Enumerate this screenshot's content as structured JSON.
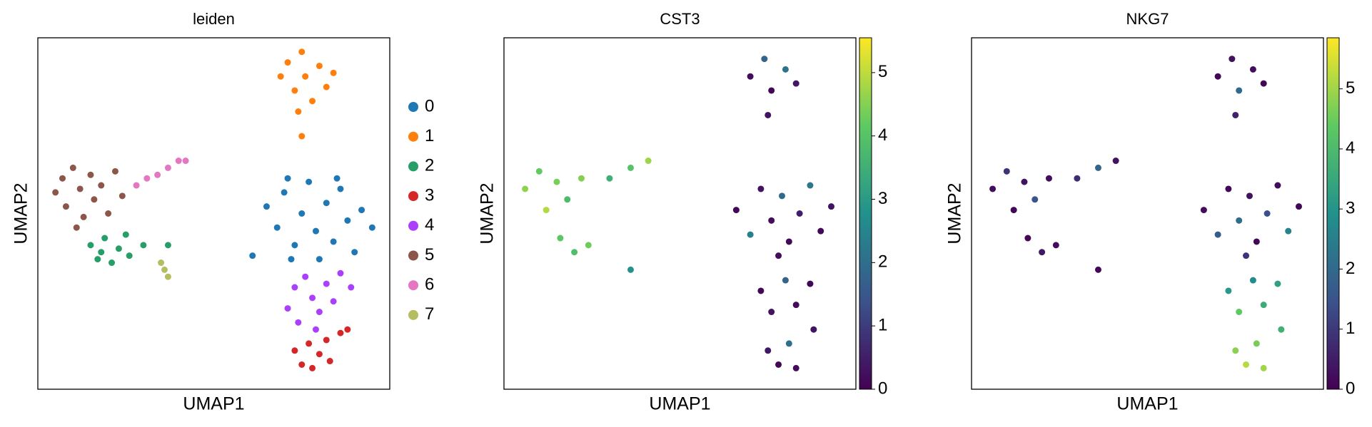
{
  "chart_data": [
    {
      "type": "scatter",
      "title": "leiden",
      "xlabel": "UMAP1",
      "ylabel": "UMAP2",
      "xlim": [
        0,
        10
      ],
      "ylim": [
        0,
        10
      ],
      "legend": "right",
      "series": [
        {
          "name": "0",
          "color": "#1f77b4",
          "x": [
            6.5,
            6.8,
            7.0,
            7.3,
            7.5,
            7.7,
            7.9,
            8.0,
            8.2,
            8.4,
            8.6,
            8.8,
            9.0,
            9.2,
            9.5,
            7.2,
            8.5,
            7.1,
            6.1
          ],
          "y": [
            5.2,
            4.6,
            5.6,
            4.1,
            5.0,
            5.9,
            4.5,
            3.7,
            5.3,
            4.2,
            5.7,
            4.8,
            3.9,
            5.1,
            4.6,
            3.7,
            6.0,
            6.0,
            3.8
          ]
        },
        {
          "name": "1",
          "color": "#ff7f0e",
          "x": [
            6.9,
            7.1,
            7.3,
            7.5,
            7.6,
            7.8,
            8.0,
            8.2,
            8.4,
            7.4,
            7.5
          ],
          "y": [
            8.9,
            9.3,
            8.5,
            9.6,
            8.9,
            8.2,
            9.2,
            8.6,
            9.0,
            7.9,
            7.2
          ]
        },
        {
          "name": "2",
          "color": "#279e68",
          "x": [
            1.5,
            1.7,
            1.9,
            2.1,
            2.3,
            2.5,
            2.6,
            1.8,
            3.0,
            3.7
          ],
          "y": [
            4.1,
            3.7,
            4.3,
            3.6,
            4.0,
            4.4,
            3.8,
            3.9,
            4.1,
            4.1
          ]
        },
        {
          "name": "3",
          "color": "#d62728",
          "x": [
            7.3,
            7.5,
            7.7,
            7.8,
            8.0,
            8.2,
            8.3,
            8.8,
            8.6
          ],
          "y": [
            1.1,
            0.7,
            1.3,
            0.6,
            1.0,
            1.4,
            0.8,
            1.7,
            1.6
          ]
        },
        {
          "name": "4",
          "color": "#aa40fc",
          "x": [
            7.1,
            7.3,
            7.4,
            7.6,
            7.8,
            8.0,
            8.2,
            8.4,
            8.6,
            8.9,
            7.9
          ],
          "y": [
            2.3,
            2.9,
            1.9,
            3.2,
            2.6,
            2.2,
            3.0,
            2.5,
            3.3,
            2.9,
            1.7
          ]
        },
        {
          "name": "5",
          "color": "#8c564b",
          "x": [
            0.5,
            0.7,
            0.8,
            1.0,
            1.2,
            1.3,
            1.5,
            1.6,
            1.8,
            2.0,
            2.2,
            2.4,
            1.1
          ],
          "y": [
            5.6,
            6.0,
            5.2,
            6.3,
            5.7,
            4.9,
            6.1,
            5.4,
            5.8,
            5.0,
            6.2,
            5.5,
            4.6
          ]
        },
        {
          "name": "6",
          "color": "#e377c2",
          "x": [
            2.8,
            3.1,
            3.4,
            3.7,
            4.0,
            4.2
          ],
          "y": [
            5.8,
            6.0,
            6.1,
            6.3,
            6.5,
            6.5
          ]
        },
        {
          "name": "7",
          "color": "#b5bd61",
          "x": [
            3.5,
            3.6,
            3.7
          ],
          "y": [
            3.6,
            3.4,
            3.2
          ]
        }
      ]
    },
    {
      "type": "scatter",
      "title": "CST3",
      "xlabel": "UMAP1",
      "ylabel": "UMAP2",
      "xlim": [
        0,
        10
      ],
      "ylim": [
        0,
        10
      ],
      "colormap": "viridis",
      "clim": [
        0,
        5.55
      ],
      "cticks": [
        0,
        1,
        2,
        3,
        4,
        5
      ],
      "x": [
        0.6,
        1.0,
        1.2,
        1.5,
        1.8,
        2.2,
        1.6,
        2.0,
        2.4,
        3.0,
        3.6,
        4.1,
        3.6,
        7.0,
        7.4,
        7.6,
        8.0,
        8.3,
        7.5,
        6.6,
        7.0,
        7.3,
        7.6,
        7.9,
        8.1,
        8.4,
        8.7,
        9.0,
        9.3,
        7.8,
        7.3,
        7.6,
        8.0,
        8.3,
        8.7,
        7.5,
        7.8,
        8.1,
        8.3,
        8.8
      ],
      "y": [
        5.7,
        6.2,
        5.1,
        5.9,
        5.4,
        6.0,
        4.3,
        3.9,
        4.1,
        6.0,
        6.3,
        6.5,
        3.4,
        8.9,
        9.4,
        8.5,
        9.1,
        8.7,
        7.8,
        5.1,
        4.4,
        5.7,
        4.8,
        5.5,
        4.2,
        5.0,
        5.8,
        4.5,
        5.2,
        3.8,
        2.8,
        2.2,
        3.1,
        2.4,
        3.0,
        1.1,
        0.7,
        1.3,
        0.6,
        1.7
      ],
      "values": [
        4.6,
        4.2,
        4.9,
        4.4,
        3.8,
        4.5,
        4.1,
        3.9,
        4.3,
        3.5,
        4.0,
        4.7,
        2.8,
        0.2,
        1.8,
        0.1,
        2.1,
        0.4,
        0.3,
        0.1,
        2.4,
        0.3,
        0.2,
        1.9,
        0.1,
        0.5,
        2.2,
        0.1,
        0.3,
        0.2,
        0.1,
        0.3,
        1.8,
        0.2,
        0.1,
        0.4,
        0.1,
        2.0,
        0.2,
        0.3
      ]
    },
    {
      "type": "scatter",
      "title": "NKG7",
      "xlabel": "UMAP1",
      "ylabel": "UMAP2",
      "xlim": [
        0,
        10
      ],
      "ylim": [
        0,
        10
      ],
      "colormap": "viridis",
      "clim": [
        0,
        5.85
      ],
      "cticks": [
        0,
        1,
        2,
        3,
        4,
        5
      ],
      "x": [
        0.6,
        1.0,
        1.2,
        1.5,
        1.8,
        2.2,
        1.6,
        2.0,
        2.4,
        3.0,
        3.6,
        4.1,
        3.6,
        7.0,
        7.4,
        7.6,
        8.0,
        8.3,
        7.5,
        6.6,
        7.0,
        7.3,
        7.6,
        7.9,
        8.1,
        8.4,
        8.7,
        9.0,
        9.3,
        7.8,
        7.3,
        7.6,
        8.0,
        8.3,
        8.7,
        7.5,
        7.8,
        8.1,
        8.3,
        8.8
      ],
      "y": [
        5.7,
        6.2,
        5.1,
        5.9,
        5.4,
        6.0,
        4.3,
        3.9,
        4.1,
        6.0,
        6.3,
        6.5,
        3.4,
        8.9,
        9.4,
        8.5,
        9.1,
        8.7,
        7.8,
        5.1,
        4.4,
        5.7,
        4.8,
        5.5,
        4.2,
        5.0,
        5.8,
        4.5,
        5.2,
        3.8,
        2.8,
        2.2,
        3.1,
        2.4,
        3.0,
        1.1,
        0.7,
        1.3,
        0.6,
        1.7
      ],
      "values": [
        0.2,
        0.9,
        0.1,
        0.3,
        1.5,
        0.2,
        0.1,
        0.4,
        0.2,
        0.8,
        1.9,
        0.3,
        0.1,
        0.1,
        0.3,
        2.0,
        0.2,
        0.1,
        0.6,
        0.2,
        1.7,
        0.1,
        2.1,
        0.3,
        0.1,
        1.4,
        0.2,
        2.6,
        0.1,
        0.9,
        3.1,
        4.4,
        2.8,
        3.6,
        3.3,
        4.8,
        5.2,
        4.6,
        5.0,
        3.7
      ]
    }
  ]
}
